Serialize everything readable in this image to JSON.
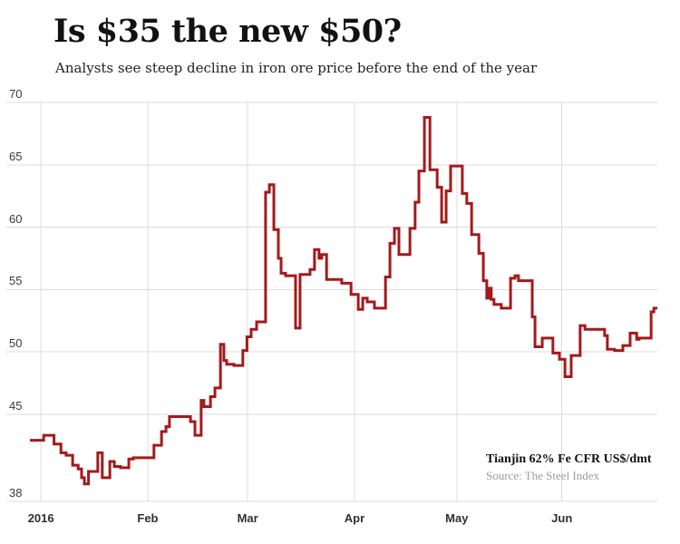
{
  "header": {
    "title": "Is $35 the new $50?",
    "subtitle": "Analysts see steep decline in iron ore price before the end of the year"
  },
  "annotation": {
    "series_label": "Tianjin 62% Fe CFR US$/dmt",
    "source": "Source: The Steel Index"
  },
  "chart_data": {
    "type": "line",
    "line_style": "step-daily",
    "title": "Is $35 the new $50?",
    "subtitle": "Analysts see steep decline in iron ore price before the end of the year",
    "series_name": "Tianjin 62% Fe CFR US$/dmt",
    "source": "Source: The Steel Index",
    "line_color": "#a31a1c",
    "grid_color": "#dcdcdc",
    "background_color": "#ffffff",
    "legend": "none",
    "x_axis": {
      "unit": "days shown, late Dec 2015 through late Jun 2016",
      "domain": [
        0,
        182.3
      ],
      "ticks": [
        {
          "label": "2016",
          "day": 3.2
        },
        {
          "label": "Feb",
          "day": 34.2
        },
        {
          "label": "Mar",
          "day": 63.2
        },
        {
          "label": "Apr",
          "day": 94.2
        },
        {
          "label": "May",
          "day": 123.9
        },
        {
          "label": "Jun",
          "day": 154.4
        }
      ]
    },
    "y_axis": {
      "min": 38,
      "max": 70,
      "ticks": [
        70,
        65,
        60,
        55,
        50,
        45,
        38
      ]
    },
    "points": [
      [
        0,
        42.9
      ],
      [
        4,
        43.3
      ],
      [
        7,
        42.6
      ],
      [
        9,
        41.9
      ],
      [
        10.5,
        41.7
      ],
      [
        12.4,
        40.9
      ],
      [
        14,
        40.6
      ],
      [
        15,
        39.9
      ],
      [
        15.8,
        39.4
      ],
      [
        17,
        40.4
      ],
      [
        19.7,
        41.9
      ],
      [
        21,
        39.9
      ],
      [
        23.2,
        41.2
      ],
      [
        24.5,
        40.8
      ],
      [
        26.3,
        40.7
      ],
      [
        28.7,
        41.4
      ],
      [
        30,
        41.5
      ],
      [
        36,
        42.5
      ],
      [
        38.2,
        43.6
      ],
      [
        39.5,
        44.0
      ],
      [
        40.5,
        44.8
      ],
      [
        46.6,
        44.4
      ],
      [
        47.9,
        43.3
      ],
      [
        49.7,
        46.1
      ],
      [
        50.5,
        45.6
      ],
      [
        52.4,
        46.4
      ],
      [
        53.7,
        47.1
      ],
      [
        55.3,
        50.6
      ],
      [
        56.3,
        49.3
      ],
      [
        57.1,
        49.0
      ],
      [
        59.2,
        48.9
      ],
      [
        61.8,
        50.1
      ],
      [
        63,
        51.2
      ],
      [
        64.2,
        51.8
      ],
      [
        65.8,
        52.4
      ],
      [
        68.4,
        62.8
      ],
      [
        69.5,
        63.4
      ],
      [
        70.8,
        59.8
      ],
      [
        72.1,
        57.5
      ],
      [
        72.9,
        56.3
      ],
      [
        74.2,
        56.1
      ],
      [
        77.1,
        51.9
      ],
      [
        78.4,
        56.2
      ],
      [
        81.3,
        56.6
      ],
      [
        82.6,
        58.2
      ],
      [
        83.9,
        57.5
      ],
      [
        84.7,
        57.8
      ],
      [
        86.1,
        55.8
      ],
      [
        90.5,
        55.5
      ],
      [
        93.2,
        54.6
      ],
      [
        95.3,
        53.4
      ],
      [
        96.6,
        54.3
      ],
      [
        97.9,
        54.0
      ],
      [
        100,
        53.5
      ],
      [
        103.2,
        56.0
      ],
      [
        104.5,
        58.7
      ],
      [
        105.8,
        59.9
      ],
      [
        107.1,
        57.8
      ],
      [
        110.3,
        59.9
      ],
      [
        111.8,
        62.0
      ],
      [
        112.9,
        64.5
      ],
      [
        114.5,
        68.8
      ],
      [
        116.1,
        64.6
      ],
      [
        118.2,
        63.2
      ],
      [
        119.5,
        60.4
      ],
      [
        120.8,
        62.9
      ],
      [
        122.1,
        64.9
      ],
      [
        125.5,
        62.7
      ],
      [
        126.8,
        61.9
      ],
      [
        128.2,
        59.4
      ],
      [
        130.3,
        57.9
      ],
      [
        131.6,
        55.7
      ],
      [
        132.6,
        54.3
      ],
      [
        133.2,
        55.1
      ],
      [
        133.9,
        54.2
      ],
      [
        134.7,
        53.8
      ],
      [
        136.8,
        53.5
      ],
      [
        139.5,
        55.9
      ],
      [
        140.8,
        56.1
      ],
      [
        141.8,
        55.7
      ],
      [
        145.8,
        52.8
      ],
      [
        146.6,
        50.4
      ],
      [
        148.7,
        51.1
      ],
      [
        151.8,
        49.9
      ],
      [
        153.7,
        49.4
      ],
      [
        155.3,
        48.0
      ],
      [
        157.1,
        49.7
      ],
      [
        159.7,
        52.1
      ],
      [
        161.1,
        51.8
      ],
      [
        166.8,
        51.3
      ],
      [
        167.6,
        50.2
      ],
      [
        169.7,
        50.1
      ],
      [
        172.1,
        50.5
      ],
      [
        174.2,
        51.5
      ],
      [
        176.1,
        51.0
      ],
      [
        176.8,
        51.1
      ],
      [
        180.3,
        53.2
      ],
      [
        181.1,
        53.5
      ]
    ]
  }
}
